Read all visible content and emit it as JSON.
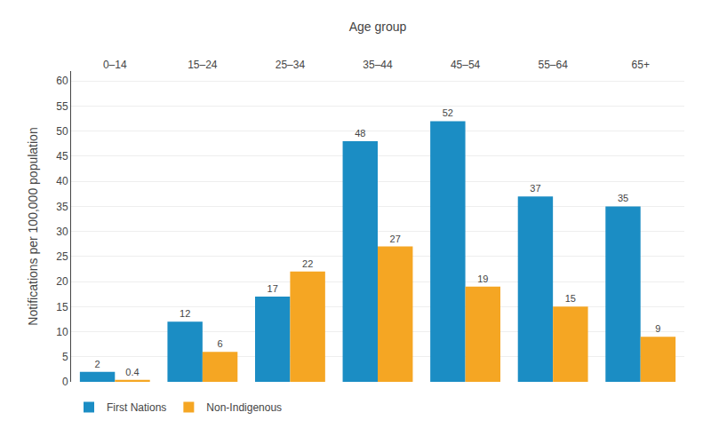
{
  "chart_data": {
    "type": "bar",
    "xlabel": "Age group",
    "ylabel": "Notifications per 100,000 population",
    "categories": [
      "0–14",
      "15–24",
      "25–34",
      "35–44",
      "45–54",
      "55–64",
      "65+"
    ],
    "series": [
      {
        "name": "First Nations",
        "color": "#1B8DC4",
        "values": [
          2,
          12,
          17,
          48,
          52,
          37,
          35
        ]
      },
      {
        "name": "Non-Indigenous",
        "color": "#F5A623",
        "values": [
          0.4,
          6,
          22,
          27,
          19,
          15,
          9
        ]
      }
    ],
    "ylim": [
      0,
      62
    ],
    "yticks": [
      0,
      5,
      10,
      15,
      20,
      25,
      30,
      35,
      40,
      45,
      50,
      55,
      60
    ],
    "grid": true,
    "legend": "bottom",
    "data_labels": true
  }
}
